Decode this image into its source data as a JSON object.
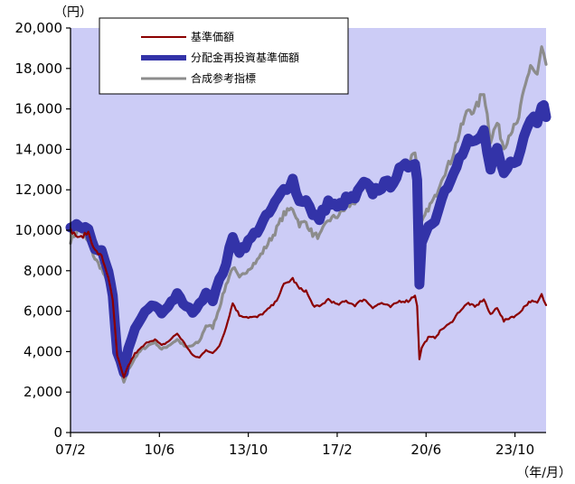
{
  "chart_data": {
    "type": "line",
    "y_unit": "（円）",
    "x_unit": "（年/月）",
    "ylim": [
      0,
      20000
    ],
    "xlim": [
      "2007-02",
      "2024-12"
    ],
    "plot_background": "#CCCCF6",
    "grid": false,
    "legend_placement": "top-left",
    "y_ticks": [
      {
        "value": 0,
        "label": "0"
      },
      {
        "value": 2000,
        "label": "2,000"
      },
      {
        "value": 4000,
        "label": "4,000"
      },
      {
        "value": 6000,
        "label": "6,000"
      },
      {
        "value": 8000,
        "label": "8,000"
      },
      {
        "value": 10000,
        "label": "10,000"
      },
      {
        "value": 12000,
        "label": "12,000"
      },
      {
        "value": 14000,
        "label": "14,000"
      },
      {
        "value": 16000,
        "label": "16,000"
      },
      {
        "value": 18000,
        "label": "18,000"
      },
      {
        "value": 20000,
        "label": "20,000"
      }
    ],
    "x_ticks": [
      {
        "value": "2007-02",
        "label": "07/2"
      },
      {
        "value": "2010-06",
        "label": "10/6"
      },
      {
        "value": "2013-10",
        "label": "13/10"
      },
      {
        "value": "2017-02",
        "label": "17/2"
      },
      {
        "value": "2020-06",
        "label": "20/6"
      },
      {
        "value": "2023-10",
        "label": "23/10"
      }
    ],
    "series": [
      {
        "name": "基準価額",
        "color": "#8B0000",
        "style": "thin",
        "points": [
          [
            "2007-02",
            10000
          ],
          [
            "2007-06",
            9600
          ],
          [
            "2007-10",
            9900
          ],
          [
            "2008-01",
            9000
          ],
          [
            "2008-04",
            8700
          ],
          [
            "2008-07",
            7700
          ],
          [
            "2008-09",
            6500
          ],
          [
            "2008-11",
            3800
          ],
          [
            "2009-02",
            2700
          ],
          [
            "2009-04",
            3300
          ],
          [
            "2009-07",
            3900
          ],
          [
            "2009-10",
            4200
          ],
          [
            "2010-01",
            4500
          ],
          [
            "2010-04",
            4600
          ],
          [
            "2010-07",
            4300
          ],
          [
            "2010-10",
            4500
          ],
          [
            "2011-02",
            4900
          ],
          [
            "2011-06",
            4300
          ],
          [
            "2011-09",
            3800
          ],
          [
            "2011-12",
            3700
          ],
          [
            "2012-03",
            4100
          ],
          [
            "2012-06",
            3900
          ],
          [
            "2012-09",
            4300
          ],
          [
            "2012-12",
            5200
          ],
          [
            "2013-03",
            6400
          ],
          [
            "2013-06",
            5800
          ],
          [
            "2013-10",
            5700
          ],
          [
            "2014-02",
            5700
          ],
          [
            "2014-06",
            6000
          ],
          [
            "2014-10",
            6400
          ],
          [
            "2015-02",
            7300
          ],
          [
            "2015-06",
            7600
          ],
          [
            "2015-09",
            7100
          ],
          [
            "2015-12",
            7000
          ],
          [
            "2016-03",
            6300
          ],
          [
            "2016-06",
            6200
          ],
          [
            "2016-10",
            6600
          ],
          [
            "2017-02",
            6300
          ],
          [
            "2017-06",
            6500
          ],
          [
            "2017-10",
            6300
          ],
          [
            "2018-02",
            6600
          ],
          [
            "2018-06",
            6200
          ],
          [
            "2018-10",
            6400
          ],
          [
            "2019-02",
            6200
          ],
          [
            "2019-06",
            6500
          ],
          [
            "2019-10",
            6500
          ],
          [
            "2020-01",
            6800
          ],
          [
            "2020-02",
            6300
          ],
          [
            "2020-03",
            3600
          ],
          [
            "2020-04",
            4200
          ],
          [
            "2020-07",
            4700
          ],
          [
            "2020-10",
            4700
          ],
          [
            "2021-01",
            5100
          ],
          [
            "2021-05",
            5400
          ],
          [
            "2021-09",
            6000
          ],
          [
            "2022-01",
            6400
          ],
          [
            "2022-04",
            6200
          ],
          [
            "2022-08",
            6600
          ],
          [
            "2022-11",
            5800
          ],
          [
            "2023-02",
            6200
          ],
          [
            "2023-05",
            5500
          ],
          [
            "2023-08",
            5700
          ],
          [
            "2023-11",
            5800
          ],
          [
            "2024-02",
            6200
          ],
          [
            "2024-05",
            6500
          ],
          [
            "2024-08",
            6400
          ],
          [
            "2024-10",
            6800
          ],
          [
            "2024-12",
            6300
          ]
        ]
      },
      {
        "name": "分配金再投資基準価額",
        "color": "#3333A8",
        "style": "thick",
        "points": [
          [
            "2007-02",
            10000
          ],
          [
            "2007-06",
            10200
          ],
          [
            "2007-10",
            9900
          ],
          [
            "2008-01",
            9200
          ],
          [
            "2008-04",
            8900
          ],
          [
            "2008-07",
            7900
          ],
          [
            "2008-09",
            6700
          ],
          [
            "2008-11",
            4000
          ],
          [
            "2009-02",
            3000
          ],
          [
            "2009-04",
            4100
          ],
          [
            "2009-07",
            5100
          ],
          [
            "2009-10",
            5700
          ],
          [
            "2010-01",
            6100
          ],
          [
            "2010-04",
            6300
          ],
          [
            "2010-07",
            5900
          ],
          [
            "2010-10",
            6300
          ],
          [
            "2011-02",
            6800
          ],
          [
            "2011-06",
            6200
          ],
          [
            "2011-09",
            6000
          ],
          [
            "2011-12",
            6300
          ],
          [
            "2012-03",
            7000
          ],
          [
            "2012-06",
            6600
          ],
          [
            "2012-09",
            7500
          ],
          [
            "2012-12",
            8400
          ],
          [
            "2013-03",
            9600
          ],
          [
            "2013-06",
            9000
          ],
          [
            "2013-10",
            9400
          ],
          [
            "2014-02",
            10000
          ],
          [
            "2014-06",
            10600
          ],
          [
            "2014-10",
            11300
          ],
          [
            "2015-02",
            12000
          ],
          [
            "2015-06",
            12500
          ],
          [
            "2015-09",
            11400
          ],
          [
            "2015-12",
            11600
          ],
          [
            "2016-03",
            10700
          ],
          [
            "2016-06",
            10600
          ],
          [
            "2016-10",
            11400
          ],
          [
            "2017-02",
            11100
          ],
          [
            "2017-06",
            11500
          ],
          [
            "2017-10",
            11600
          ],
          [
            "2018-02",
            12300
          ],
          [
            "2018-06",
            11900
          ],
          [
            "2018-10",
            12200
          ],
          [
            "2019-02",
            12300
          ],
          [
            "2019-06",
            12900
          ],
          [
            "2019-10",
            13200
          ],
          [
            "2020-01",
            13500
          ],
          [
            "2020-02",
            12500
          ],
          [
            "2020-03",
            7300
          ],
          [
            "2020-04",
            9500
          ],
          [
            "2020-07",
            10200
          ],
          [
            "2020-10",
            10600
          ],
          [
            "2021-01",
            11700
          ],
          [
            "2021-05",
            12300
          ],
          [
            "2021-09",
            13500
          ],
          [
            "2022-01",
            14300
          ],
          [
            "2022-04",
            14200
          ],
          [
            "2022-08",
            14800
          ],
          [
            "2022-11",
            13200
          ],
          [
            "2023-02",
            14000
          ],
          [
            "2023-05",
            12800
          ],
          [
            "2023-08",
            13400
          ],
          [
            "2023-11",
            13600
          ],
          [
            "2024-02",
            14700
          ],
          [
            "2024-05",
            15600
          ],
          [
            "2024-08",
            15500
          ],
          [
            "2024-10",
            16400
          ],
          [
            "2024-12",
            15600
          ]
        ]
      },
      {
        "name": "合成参考指標",
        "color": "#8C8C8C",
        "style": "medium",
        "points": [
          [
            "2007-02",
            9500
          ],
          [
            "2007-06",
            10100
          ],
          [
            "2007-10",
            9400
          ],
          [
            "2008-01",
            8600
          ],
          [
            "2008-04",
            8100
          ],
          [
            "2008-07",
            7200
          ],
          [
            "2008-09",
            6300
          ],
          [
            "2008-11",
            3500
          ],
          [
            "2009-02",
            2500
          ],
          [
            "2009-04",
            3100
          ],
          [
            "2009-07",
            3700
          ],
          [
            "2009-10",
            4100
          ],
          [
            "2010-01",
            4300
          ],
          [
            "2010-04",
            4500
          ],
          [
            "2010-07",
            4100
          ],
          [
            "2010-10",
            4300
          ],
          [
            "2011-02",
            4600
          ],
          [
            "2011-06",
            4200
          ],
          [
            "2011-09",
            4300
          ],
          [
            "2011-12",
            4500
          ],
          [
            "2012-03",
            5300
          ],
          [
            "2012-06",
            5200
          ],
          [
            "2012-09",
            6200
          ],
          [
            "2012-12",
            7300
          ],
          [
            "2013-03",
            8200
          ],
          [
            "2013-06",
            7600
          ],
          [
            "2013-10",
            8100
          ],
          [
            "2014-02",
            8500
          ],
          [
            "2014-06",
            9200
          ],
          [
            "2014-10",
            9900
          ],
          [
            "2015-02",
            10800
          ],
          [
            "2015-06",
            11100
          ],
          [
            "2015-09",
            10300
          ],
          [
            "2015-12",
            10400
          ],
          [
            "2016-03",
            9800
          ],
          [
            "2016-06",
            9700
          ],
          [
            "2016-10",
            10500
          ],
          [
            "2017-02",
            10700
          ],
          [
            "2017-06",
            11100
          ],
          [
            "2017-10",
            11400
          ],
          [
            "2018-02",
            12200
          ],
          [
            "2018-06",
            11800
          ],
          [
            "2018-10",
            12000
          ],
          [
            "2019-02",
            12400
          ],
          [
            "2019-06",
            13000
          ],
          [
            "2019-10",
            13300
          ],
          [
            "2020-01",
            14000
          ],
          [
            "2020-02",
            13000
          ],
          [
            "2020-03",
            8300
          ],
          [
            "2020-04",
            10300
          ],
          [
            "2020-07",
            11100
          ],
          [
            "2020-10",
            11600
          ],
          [
            "2021-01",
            12600
          ],
          [
            "2021-05",
            13400
          ],
          [
            "2021-09",
            14800
          ],
          [
            "2022-01",
            16000
          ],
          [
            "2022-04",
            15900
          ],
          [
            "2022-08",
            16900
          ],
          [
            "2022-11",
            14500
          ],
          [
            "2023-02",
            15300
          ],
          [
            "2023-05",
            14100
          ],
          [
            "2023-08",
            14900
          ],
          [
            "2023-11",
            15200
          ],
          [
            "2024-02",
            16800
          ],
          [
            "2024-05",
            18200
          ],
          [
            "2024-08",
            17600
          ],
          [
            "2024-10",
            19000
          ],
          [
            "2024-12",
            18200
          ]
        ]
      }
    ]
  }
}
